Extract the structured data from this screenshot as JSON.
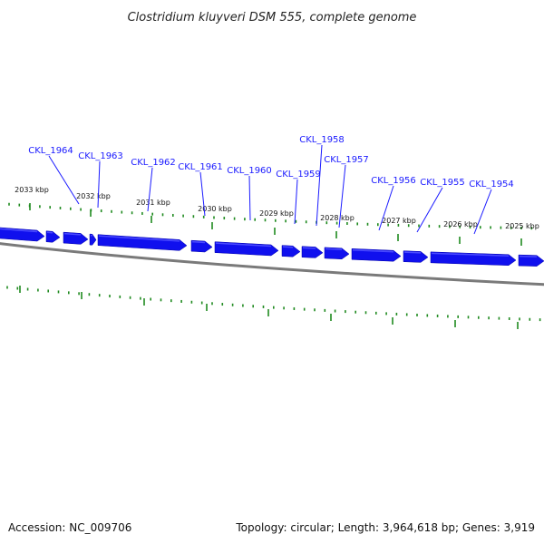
{
  "title": "Clostridium kluyveri DSM 555, complete genome",
  "footer": {
    "accession": "Accession: NC_009706",
    "summary": "Topology: circular; Length: 3,964,618 bp; Genes: 3,919"
  },
  "colors": {
    "gene": "#1010ee",
    "gene_highlight": "#4a4aff",
    "label": "#1a1aff",
    "tick": "#1f8a1f",
    "backbone": "#7a7a7a"
  },
  "kbp_labels": [
    "2033 kbp",
    "2032 kbp",
    "2031 kbp",
    "2030 kbp",
    "2029 kbp",
    "2028 kbp",
    "2027 kbp",
    "2026 kbp",
    "2025 kbp"
  ],
  "genes": [
    "CKL_1964",
    "CKL_1963",
    "CKL_1962",
    "CKL_1961",
    "CKL_1960",
    "CKL_1959",
    "CKL_1958",
    "CKL_1957",
    "CKL_1956",
    "CKL_1955",
    "CKL_1954"
  ]
}
